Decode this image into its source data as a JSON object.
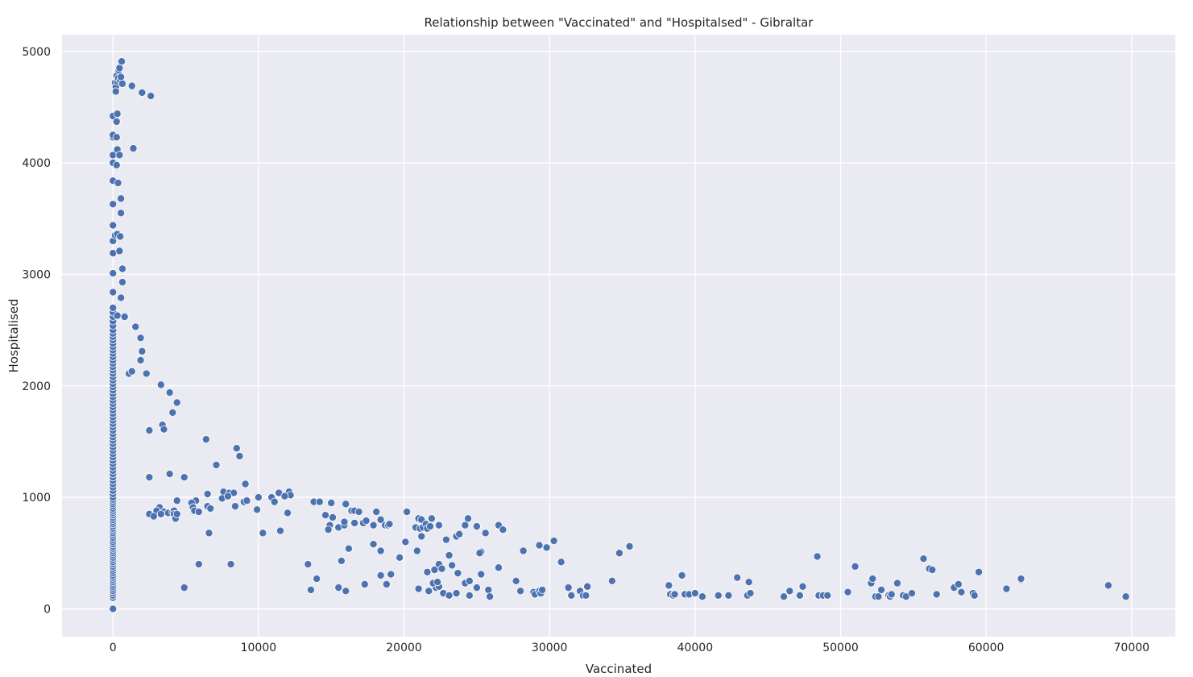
{
  "chart_data": {
    "type": "scatter",
    "title": "Relationship between \"Vaccinated\" and \"Hospitalsed\" - Gibraltar",
    "xlabel": "Vaccinated",
    "ylabel": "Hospitalised",
    "xlim": [
      -3500,
      73000
    ],
    "ylim": [
      -250,
      5150
    ],
    "xticks": [
      0,
      10000,
      20000,
      30000,
      40000,
      50000,
      60000,
      70000
    ],
    "yticks": [
      0,
      1000,
      2000,
      3000,
      4000,
      5000
    ],
    "grid": true,
    "colors": {
      "background": "#eaeaf2",
      "grid": "#ffffff",
      "point": "#4c72b0"
    },
    "points": [
      [
        0,
        0
      ],
      [
        0,
        100
      ],
      [
        0,
        120
      ],
      [
        0,
        140
      ],
      [
        0,
        160
      ],
      [
        0,
        180
      ],
      [
        0,
        200
      ],
      [
        0,
        220
      ],
      [
        0,
        240
      ],
      [
        0,
        260
      ],
      [
        0,
        280
      ],
      [
        0,
        300
      ],
      [
        0,
        320
      ],
      [
        0,
        340
      ],
      [
        0,
        360
      ],
      [
        0,
        380
      ],
      [
        0,
        400
      ],
      [
        0,
        420
      ],
      [
        0,
        440
      ],
      [
        0,
        460
      ],
      [
        0,
        480
      ],
      [
        0,
        500
      ],
      [
        0,
        520
      ],
      [
        0,
        540
      ],
      [
        0,
        560
      ],
      [
        0,
        580
      ],
      [
        0,
        600
      ],
      [
        0,
        620
      ],
      [
        0,
        640
      ],
      [
        0,
        660
      ],
      [
        0,
        680
      ],
      [
        0,
        700
      ],
      [
        0,
        720
      ],
      [
        0,
        740
      ],
      [
        0,
        760
      ],
      [
        0,
        780
      ],
      [
        0,
        800
      ],
      [
        0,
        820
      ],
      [
        0,
        840
      ],
      [
        0,
        860
      ],
      [
        0,
        880
      ],
      [
        0,
        900
      ],
      [
        0,
        920
      ],
      [
        0,
        940
      ],
      [
        0,
        960
      ],
      [
        0,
        980
      ],
      [
        0,
        1000
      ],
      [
        0,
        1030
      ],
      [
        0,
        1060
      ],
      [
        0,
        1090
      ],
      [
        0,
        1120
      ],
      [
        0,
        1150
      ],
      [
        0,
        1180
      ],
      [
        0,
        1210
      ],
      [
        0,
        1240
      ],
      [
        0,
        1270
      ],
      [
        0,
        1300
      ],
      [
        0,
        1330
      ],
      [
        0,
        1360
      ],
      [
        0,
        1390
      ],
      [
        0,
        1420
      ],
      [
        0,
        1450
      ],
      [
        0,
        1480
      ],
      [
        0,
        1510
      ],
      [
        0,
        1540
      ],
      [
        0,
        1570
      ],
      [
        0,
        1600
      ],
      [
        0,
        1630
      ],
      [
        0,
        1660
      ],
      [
        0,
        1690
      ],
      [
        0,
        1720
      ],
      [
        0,
        1750
      ],
      [
        0,
        1780
      ],
      [
        0,
        1810
      ],
      [
        0,
        1840
      ],
      [
        0,
        1870
      ],
      [
        0,
        1900
      ],
      [
        0,
        1930
      ],
      [
        0,
        1960
      ],
      [
        0,
        1990
      ],
      [
        0,
        2020
      ],
      [
        0,
        2050
      ],
      [
        0,
        2080
      ],
      [
        0,
        2110
      ],
      [
        0,
        2140
      ],
      [
        0,
        2170
      ],
      [
        0,
        2200
      ],
      [
        0,
        2230
      ],
      [
        0,
        2260
      ],
      [
        0,
        2290
      ],
      [
        0,
        2320
      ],
      [
        0,
        2350
      ],
      [
        0,
        2380
      ],
      [
        0,
        2410
      ],
      [
        0,
        2440
      ],
      [
        0,
        2470
      ],
      [
        0,
        2500
      ],
      [
        0,
        2540
      ],
      [
        0,
        2580
      ],
      [
        0,
        2620
      ],
      [
        0,
        2660
      ],
      [
        0,
        2700
      ],
      [
        0,
        2840
      ],
      [
        0,
        3010
      ],
      [
        0,
        3190
      ],
      [
        0,
        3300
      ],
      [
        0,
        3440
      ],
      [
        0,
        3630
      ],
      [
        0,
        3840
      ],
      [
        0,
        4000
      ],
      [
        0,
        4070
      ],
      [
        0,
        4230
      ],
      [
        0,
        4250
      ],
      [
        0,
        4420
      ],
      [
        150,
        4720
      ],
      [
        200,
        4680
      ],
      [
        200,
        4640
      ],
      [
        250,
        4780
      ],
      [
        300,
        4730
      ],
      [
        350,
        4760
      ],
      [
        400,
        4830
      ],
      [
        450,
        4850
      ],
      [
        500,
        4740
      ],
      [
        550,
        4770
      ],
      [
        600,
        4910
      ],
      [
        650,
        4710
      ],
      [
        1300,
        4690
      ],
      [
        2000,
        4630
      ],
      [
        2600,
        4600
      ],
      [
        300,
        4440
      ],
      [
        250,
        4370
      ],
      [
        250,
        4230
      ],
      [
        300,
        4120
      ],
      [
        450,
        4070
      ],
      [
        1400,
        4130
      ],
      [
        250,
        3980
      ],
      [
        350,
        3820
      ],
      [
        550,
        3680
      ],
      [
        550,
        3550
      ],
      [
        150,
        3350
      ],
      [
        300,
        3360
      ],
      [
        500,
        3340
      ],
      [
        450,
        3210
      ],
      [
        650,
        3050
      ],
      [
        650,
        2930
      ],
      [
        550,
        2790
      ],
      [
        300,
        2630
      ],
      [
        800,
        2620
      ],
      [
        1550,
        2530
      ],
      [
        1900,
        2430
      ],
      [
        2000,
        2310
      ],
      [
        1900,
        2230
      ],
      [
        1100,
        2110
      ],
      [
        1300,
        2130
      ],
      [
        2300,
        2110
      ],
      [
        3300,
        2010
      ],
      [
        3900,
        1940
      ],
      [
        4400,
        1850
      ],
      [
        4100,
        1760
      ],
      [
        3400,
        1650
      ],
      [
        3500,
        1610
      ],
      [
        2500,
        1600
      ],
      [
        6400,
        1520
      ],
      [
        8500,
        1440
      ],
      [
        8700,
        1370
      ],
      [
        7100,
        1290
      ],
      [
        2500,
        1180
      ],
      [
        4900,
        1180
      ],
      [
        3900,
        1210
      ],
      [
        9100,
        1120
      ],
      [
        7600,
        1050
      ],
      [
        8000,
        1040
      ],
      [
        8300,
        1040
      ],
      [
        7500,
        990
      ],
      [
        7900,
        1010
      ],
      [
        10000,
        1000
      ],
      [
        10900,
        1000
      ],
      [
        11400,
        1040
      ],
      [
        12100,
        1050
      ],
      [
        12200,
        1020
      ],
      [
        11800,
        1010
      ],
      [
        11100,
        960
      ],
      [
        6500,
        1030
      ],
      [
        9000,
        960
      ],
      [
        9200,
        970
      ],
      [
        5700,
        970
      ],
      [
        6500,
        920
      ],
      [
        6700,
        900
      ],
      [
        5400,
        950
      ],
      [
        5500,
        910
      ],
      [
        5600,
        880
      ],
      [
        5900,
        870
      ],
      [
        9900,
        890
      ],
      [
        8400,
        920
      ],
      [
        4400,
        970
      ],
      [
        3200,
        910
      ],
      [
        3000,
        880
      ],
      [
        3500,
        870
      ],
      [
        3800,
        860
      ],
      [
        4100,
        870
      ],
      [
        4200,
        880
      ],
      [
        4200,
        850
      ],
      [
        2500,
        850
      ],
      [
        2800,
        830
      ],
      [
        3300,
        850
      ],
      [
        4300,
        810
      ],
      [
        4400,
        850
      ],
      [
        12000,
        860
      ],
      [
        6600,
        680
      ],
      [
        10300,
        680
      ],
      [
        11500,
        700
      ],
      [
        5900,
        400
      ],
      [
        8100,
        400
      ],
      [
        4900,
        190
      ],
      [
        13800,
        960
      ],
      [
        14200,
        960
      ],
      [
        15000,
        950
      ],
      [
        16000,
        940
      ],
      [
        14600,
        840
      ],
      [
        15100,
        820
      ],
      [
        14900,
        750
      ],
      [
        14800,
        710
      ],
      [
        15500,
        730
      ],
      [
        15900,
        750
      ],
      [
        15900,
        780
      ],
      [
        16400,
        880
      ],
      [
        16600,
        880
      ],
      [
        16900,
        870
      ],
      [
        16600,
        770
      ],
      [
        17200,
        770
      ],
      [
        17400,
        790
      ],
      [
        17900,
        750
      ],
      [
        18100,
        870
      ],
      [
        18400,
        800
      ],
      [
        18700,
        750
      ],
      [
        18900,
        750
      ],
      [
        19000,
        760
      ],
      [
        20200,
        870
      ],
      [
        20800,
        730
      ],
      [
        21000,
        810
      ],
      [
        21200,
        800
      ],
      [
        21100,
        720
      ],
      [
        21300,
        730
      ],
      [
        21500,
        760
      ],
      [
        21600,
        720
      ],
      [
        21800,
        740
      ],
      [
        21900,
        810
      ],
      [
        22400,
        750
      ],
      [
        24200,
        750
      ],
      [
        24400,
        810
      ],
      [
        25000,
        740
      ],
      [
        25600,
        680
      ],
      [
        26500,
        750
      ],
      [
        26800,
        710
      ],
      [
        23600,
        650
      ],
      [
        23800,
        670
      ],
      [
        22900,
        620
      ],
      [
        21200,
        650
      ],
      [
        20100,
        600
      ],
      [
        17900,
        580
      ],
      [
        16200,
        540
      ],
      [
        18400,
        520
      ],
      [
        20900,
        520
      ],
      [
        25300,
        510
      ],
      [
        28200,
        520
      ],
      [
        29300,
        570
      ],
      [
        29800,
        550
      ],
      [
        30300,
        610
      ],
      [
        23100,
        480
      ],
      [
        25200,
        500
      ],
      [
        19700,
        460
      ],
      [
        15700,
        430
      ],
      [
        30800,
        420
      ],
      [
        34800,
        500
      ],
      [
        35500,
        560
      ],
      [
        13400,
        400
      ],
      [
        14000,
        270
      ],
      [
        13600,
        170
      ],
      [
        15500,
        190
      ],
      [
        16000,
        160
      ],
      [
        17300,
        220
      ],
      [
        18400,
        300
      ],
      [
        18800,
        220
      ],
      [
        19100,
        310
      ],
      [
        21600,
        330
      ],
      [
        22100,
        350
      ],
      [
        22400,
        400
      ],
      [
        22600,
        360
      ],
      [
        23300,
        390
      ],
      [
        23700,
        320
      ],
      [
        23600,
        140
      ],
      [
        21700,
        160
      ],
      [
        22200,
        190
      ],
      [
        22400,
        200
      ],
      [
        22000,
        230
      ],
      [
        22300,
        240
      ],
      [
        21000,
        180
      ],
      [
        22700,
        140
      ],
      [
        23100,
        120
      ],
      [
        24200,
        230
      ],
      [
        24500,
        250
      ],
      [
        24500,
        120
      ],
      [
        25000,
        190
      ],
      [
        25300,
        310
      ],
      [
        25800,
        170
      ],
      [
        25900,
        110
      ],
      [
        26500,
        370
      ],
      [
        27700,
        250
      ],
      [
        28000,
        160
      ],
      [
        28900,
        150
      ],
      [
        29000,
        130
      ],
      [
        29300,
        160
      ],
      [
        29400,
        140
      ],
      [
        29500,
        170
      ],
      [
        31300,
        190
      ],
      [
        31500,
        120
      ],
      [
        32100,
        160
      ],
      [
        32300,
        120
      ],
      [
        32500,
        120
      ],
      [
        32600,
        200
      ],
      [
        34300,
        250
      ],
      [
        38200,
        210
      ],
      [
        38300,
        130
      ],
      [
        38500,
        120
      ],
      [
        38600,
        130
      ],
      [
        39100,
        300
      ],
      [
        39300,
        130
      ],
      [
        39600,
        130
      ],
      [
        40000,
        140
      ],
      [
        40500,
        110
      ],
      [
        41600,
        120
      ],
      [
        42300,
        120
      ],
      [
        42900,
        280
      ],
      [
        43600,
        120
      ],
      [
        43700,
        240
      ],
      [
        43800,
        140
      ],
      [
        46100,
        110
      ],
      [
        46500,
        160
      ],
      [
        47200,
        120
      ],
      [
        47400,
        200
      ],
      [
        48400,
        470
      ],
      [
        48500,
        120
      ],
      [
        48800,
        120
      ],
      [
        49100,
        120
      ],
      [
        50500,
        150
      ],
      [
        51000,
        380
      ],
      [
        52100,
        230
      ],
      [
        52200,
        270
      ],
      [
        52400,
        110
      ],
      [
        52600,
        110
      ],
      [
        52800,
        170
      ],
      [
        53300,
        120
      ],
      [
        53400,
        110
      ],
      [
        53500,
        130
      ],
      [
        53900,
        230
      ],
      [
        54300,
        120
      ],
      [
        54500,
        110
      ],
      [
        54900,
        140
      ],
      [
        55700,
        450
      ],
      [
        56100,
        360
      ],
      [
        56300,
        350
      ],
      [
        56600,
        130
      ],
      [
        57800,
        190
      ],
      [
        58100,
        220
      ],
      [
        58300,
        150
      ],
      [
        59100,
        140
      ],
      [
        59200,
        120
      ],
      [
        59500,
        330
      ],
      [
        61400,
        180
      ],
      [
        62400,
        260
      ],
      [
        62400,
        270
      ],
      [
        68400,
        210
      ],
      [
        69600,
        110
      ]
    ]
  }
}
